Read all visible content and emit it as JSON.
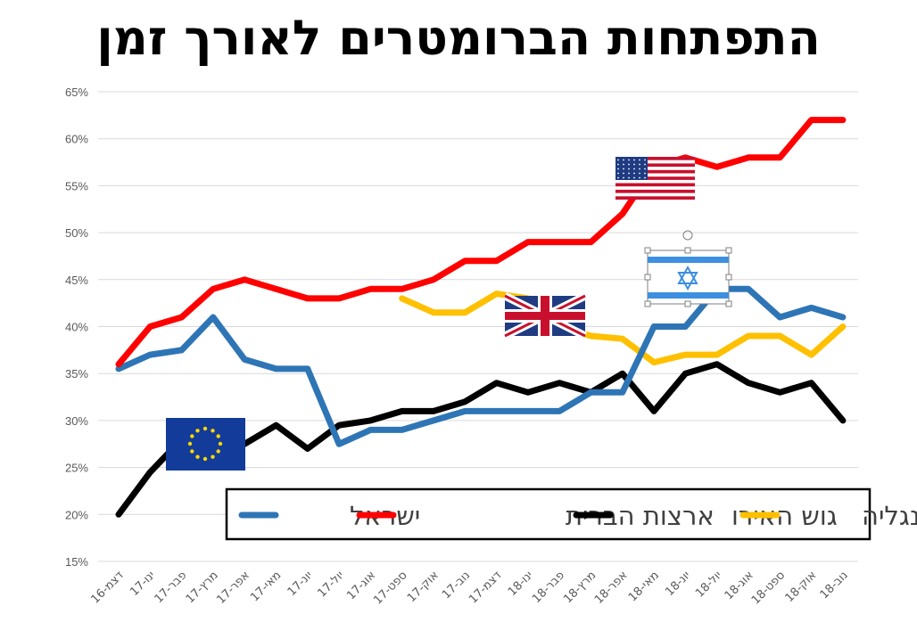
{
  "chart_data": {
    "type": "line",
    "title": "התפתחות הברומטרים לאורך זמן",
    "categories": [
      "דצמ-16",
      "ינו-17",
      "פבר-17",
      "מרץ-17",
      "אפר-17",
      "מאי-17",
      "יונ-17",
      "יול-17",
      "אוג-17",
      "ספט-17",
      "אוק-17",
      "נוב-17",
      "דצמ-17",
      "ינו-18",
      "פבר-18",
      "מרץ-18",
      "אפר-18",
      "מאי-18",
      "יונ-18",
      "יול-18",
      "אוג-18",
      "ספט-18",
      "אוק-18",
      "נוב-18"
    ],
    "ylim": [
      0.15,
      0.65
    ],
    "yticks": [
      "15%",
      "20%",
      "25%",
      "30%",
      "35%",
      "40%",
      "45%",
      "50%",
      "55%",
      "60%",
      "65%"
    ],
    "ytick_values": [
      0.15,
      0.2,
      0.25,
      0.3,
      0.35,
      0.4,
      0.45,
      0.5,
      0.55,
      0.6,
      0.65
    ],
    "grid": true,
    "legend_placement": "bottom-right",
    "series": [
      {
        "name": "ישראל",
        "color": "#2e75b6",
        "values": [
          0.355,
          0.37,
          0.375,
          0.41,
          0.365,
          0.355,
          0.355,
          0.275,
          0.29,
          0.29,
          0.3,
          0.31,
          0.31,
          0.31,
          0.31,
          0.33,
          0.33,
          0.4,
          0.4,
          0.44,
          0.44,
          0.41,
          0.42,
          0.41
        ]
      },
      {
        "name": "ארצות הברית",
        "color": "#ff0000",
        "values": [
          0.36,
          0.4,
          0.41,
          0.44,
          0.45,
          0.44,
          0.43,
          0.43,
          0.44,
          0.44,
          0.45,
          0.47,
          0.47,
          0.49,
          0.49,
          0.49,
          0.52,
          0.57,
          0.58,
          0.57,
          0.58,
          0.58,
          0.62,
          0.62
        ]
      },
      {
        "name": "גוש האירו",
        "color": "#000000",
        "values": [
          0.2,
          0.245,
          0.28,
          0.27,
          0.275,
          0.295,
          0.27,
          0.295,
          0.3,
          0.31,
          0.31,
          0.32,
          0.34,
          0.33,
          0.34,
          0.33,
          0.35,
          0.31,
          0.35,
          0.36,
          0.34,
          0.33,
          0.34,
          0.3
        ]
      },
      {
        "name": "אנגליה",
        "color": "#ffc000",
        "values": [
          null,
          null,
          null,
          null,
          null,
          null,
          null,
          null,
          null,
          0.43,
          0.415,
          0.415,
          0.435,
          0.43,
          0.4,
          0.39,
          0.387,
          0.362,
          0.37,
          0.37,
          0.39,
          0.39,
          0.37,
          0.4
        ]
      }
    ],
    "flags": [
      "eu-flag-icon",
      "uk-flag-icon",
      "us-flag-icon",
      "israel-flag-icon"
    ]
  }
}
